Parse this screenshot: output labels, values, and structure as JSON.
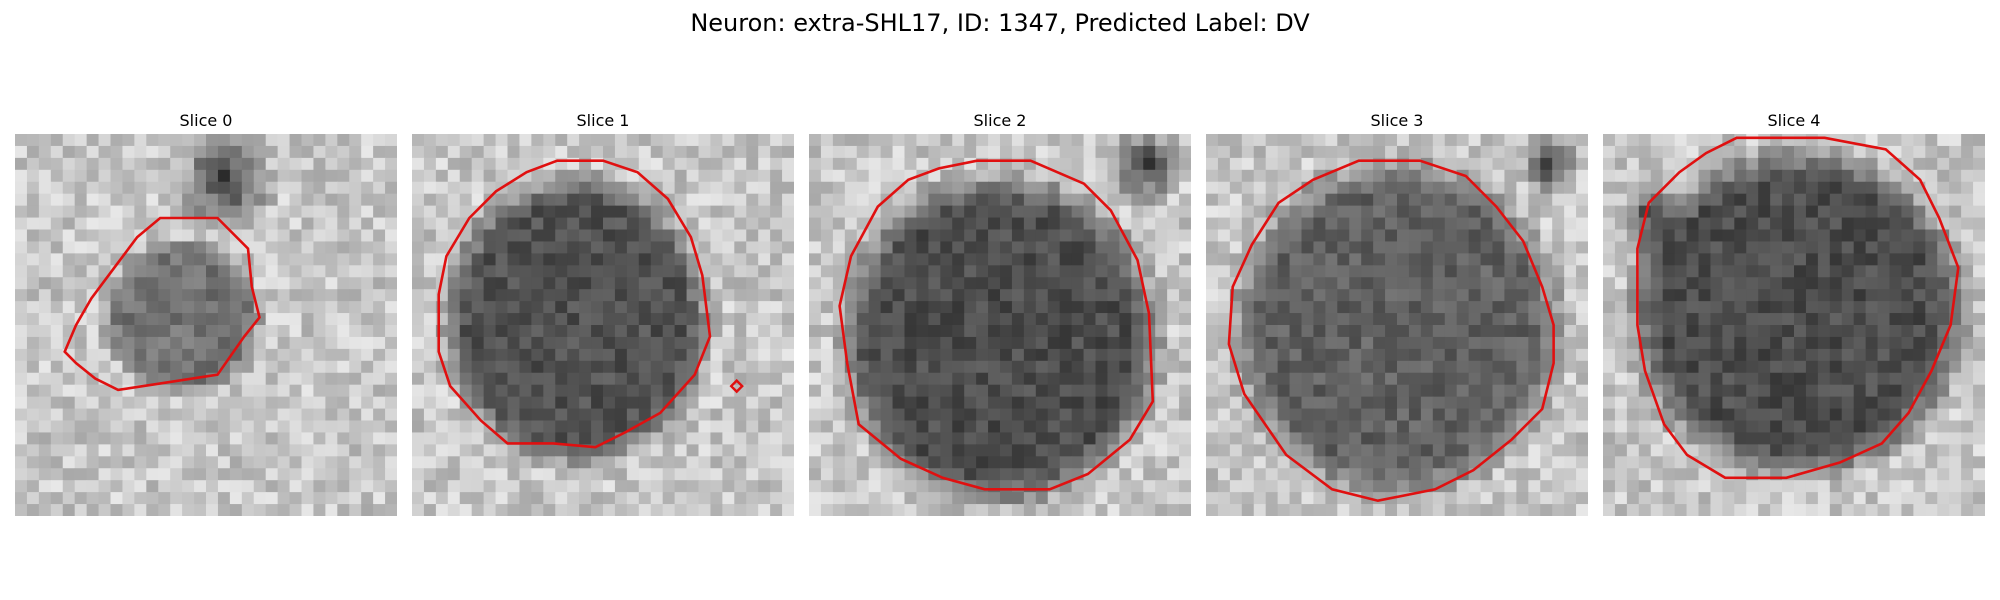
{
  "figure": {
    "title": "Neuron: extra-SHL17, ID: 1347, Predicted Label: DV"
  },
  "panels": [
    {
      "title": "Slice 0"
    },
    {
      "title": "Slice 1"
    },
    {
      "title": "Slice 2"
    },
    {
      "title": "Slice 3"
    },
    {
      "title": "Slice 4"
    }
  ],
  "colors": {
    "contour": "#e01010",
    "background": "#ffffff"
  }
}
